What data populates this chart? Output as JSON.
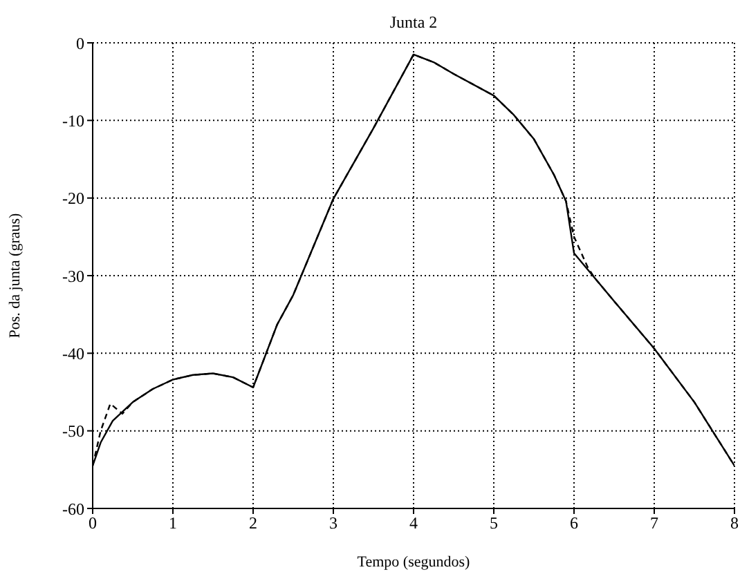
{
  "chart_data": {
    "type": "line",
    "title": "Junta 2",
    "xlabel": "Tempo (segundos)",
    "ylabel": "Pos. da junta (graus)",
    "xlim": [
      0,
      8
    ],
    "ylim": [
      -60,
      0
    ],
    "xticks": [
      0,
      1,
      2,
      3,
      4,
      5,
      6,
      7,
      8
    ],
    "yticks": [
      -60,
      -50,
      -40,
      -30,
      -20,
      -10,
      0
    ],
    "grid": true,
    "series": [
      {
        "color": "#000000",
        "line_style": "solid",
        "x": [
          0,
          0.1,
          0.25,
          0.5,
          0.75,
          1,
          1.25,
          1.5,
          1.75,
          2,
          2.3,
          2.5,
          3,
          3.5,
          4,
          4.25,
          4.5,
          5,
          5.25,
          5.5,
          5.75,
          5.9,
          6,
          6.5,
          7,
          7.5,
          8
        ],
        "values": [
          -54.5,
          -51.5,
          -48.7,
          -46.3,
          -44.6,
          -43.4,
          -42.8,
          -42.6,
          -43.1,
          -44.4,
          -36.3,
          -32.5,
          -20.1,
          -11,
          -1.5,
          -2.5,
          -4,
          -6.8,
          -9.3,
          -12.4,
          -17,
          -20.4,
          -27.1,
          -33.3,
          -39.4,
          -46.3,
          -54.5
        ]
      },
      {
        "color": "#000000",
        "line_style": "dashed",
        "x": [
          0,
          0.1,
          0.22,
          0.37,
          0.5,
          0.75,
          1,
          1.25,
          1.5,
          1.75,
          2,
          2.3,
          2.5,
          3,
          3.5,
          4,
          4.25,
          4.5,
          5,
          5.25,
          5.5,
          5.75,
          5.9,
          6,
          6.17,
          6.25,
          6.5,
          7,
          7.5,
          8
        ],
        "values": [
          -54.5,
          -50,
          -46.5,
          -47.8,
          -46.3,
          -44.6,
          -43.4,
          -42.8,
          -42.6,
          -43.1,
          -44.4,
          -36.3,
          -32.5,
          -20.1,
          -11,
          -1.5,
          -2.5,
          -4,
          -6.8,
          -9.3,
          -12.4,
          -17,
          -20.4,
          -25,
          -28.9,
          -30.2,
          -33.3,
          -39.4,
          -46.3,
          -54.5
        ]
      }
    ]
  }
}
